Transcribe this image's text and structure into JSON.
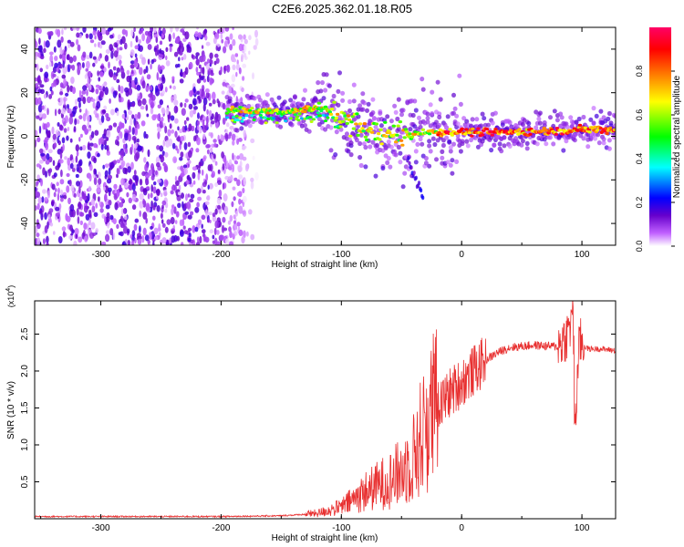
{
  "title": "C2E6.2025.362.01.18.R05",
  "chart_data": [
    {
      "type": "heatmap",
      "xlabel": "Height of straight line (km)",
      "ylabel": "Frequency (Hz)",
      "xlim": [
        -355,
        128
      ],
      "ylim": [
        -50,
        50
      ],
      "xticks": [
        "-300",
        "-200",
        "-100",
        "0",
        "100"
      ],
      "yticks": [
        "40",
        "20",
        "0",
        "-20",
        "-40"
      ],
      "colorbar": {
        "label": "Normalized spectral amplitude",
        "ticks": [
          "0.0",
          "0.2",
          "0.4",
          "0.6",
          "0.8"
        ],
        "range": [
          0,
          1
        ],
        "colors": [
          "#ffffff",
          "#c060ff",
          "#6600cc",
          "#0000ff",
          "#00ffff",
          "#00ff00",
          "#ffff00",
          "#ff8000",
          "#ff0000",
          "#ff0066"
        ]
      },
      "description_points": {
        "noise_region_x": [
          -355,
          -180
        ],
        "track": [
          {
            "x": -195,
            "f": 12
          },
          {
            "x": -150,
            "f": 11
          },
          {
            "x": -115,
            "f": 13
          },
          {
            "x": -100,
            "f": 8
          },
          {
            "x": -80,
            "f": 3
          },
          {
            "x": -55,
            "f": 0
          },
          {
            "x": -30,
            "f": 2
          },
          {
            "x": 0,
            "f": 2
          },
          {
            "x": 50,
            "f": 2
          },
          {
            "x": 100,
            "f": 3
          },
          {
            "x": 128,
            "f": 3
          }
        ],
        "side_branch": [
          {
            "x": -45,
            "f": -10
          },
          {
            "x": -38,
            "f": -20
          },
          {
            "x": -32,
            "f": -28
          }
        ]
      }
    },
    {
      "type": "line",
      "xlabel": "Height of straight line (km)",
      "ylabel": "SNR (10 * v/v)",
      "yscale_label": "(x10",
      "yscale_exp": "4",
      "xlim": [
        -355,
        128
      ],
      "ylim": [
        0,
        2.95
      ],
      "xticks": [
        "-300",
        "-200",
        "-100",
        "0",
        "100"
      ],
      "yticks": [
        "0.5",
        "1.0",
        "1.5",
        "2.0",
        "2.5"
      ],
      "color": "#e83030",
      "series": [
        {
          "x": [
            -355,
            -200,
            -150,
            -120,
            -100,
            -80,
            -60,
            -50,
            -40,
            -30,
            -20,
            -10,
            0,
            10,
            20,
            30,
            40,
            60,
            80,
            88,
            92,
            95,
            98,
            105,
            115,
            128
          ],
          "values": [
            0.03,
            0.03,
            0.04,
            0.07,
            0.15,
            0.35,
            0.5,
            0.6,
            0.8,
            1.2,
            1.5,
            1.7,
            1.85,
            2.0,
            2.15,
            2.25,
            2.32,
            2.35,
            2.33,
            2.5,
            2.7,
            1.5,
            2.4,
            2.3,
            2.3,
            2.28
          ]
        }
      ]
    }
  ]
}
